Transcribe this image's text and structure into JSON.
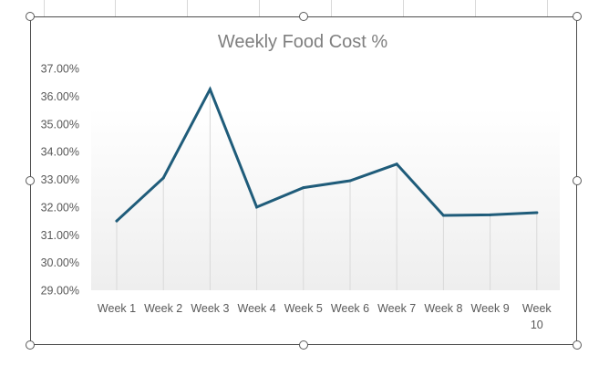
{
  "chart_data": {
    "type": "line",
    "title": "Weekly Food Cost %",
    "categories": [
      "Week 1",
      "Week 2",
      "Week 3",
      "Week 4",
      "Week 5",
      "Week 6",
      "Week 7",
      "Week 8",
      "Week 9",
      "Week 10"
    ],
    "series": [
      {
        "values": [
          31.5,
          33.05,
          36.25,
          32.0,
          32.7,
          32.95,
          33.55,
          31.7,
          31.72,
          31.8
        ]
      }
    ],
    "y_ticks": [
      "29.00%",
      "30.00%",
      "31.00%",
      "32.00%",
      "33.00%",
      "34.00%",
      "35.00%",
      "36.00%",
      "37.00%"
    ],
    "ylim": [
      29,
      37
    ],
    "grid": "vertical category lines",
    "legend": "none",
    "colors": {
      "line": "#1f5c7a",
      "title": "#7f7f7f",
      "tick": "#595959",
      "grid": "#d9d9d9"
    }
  }
}
